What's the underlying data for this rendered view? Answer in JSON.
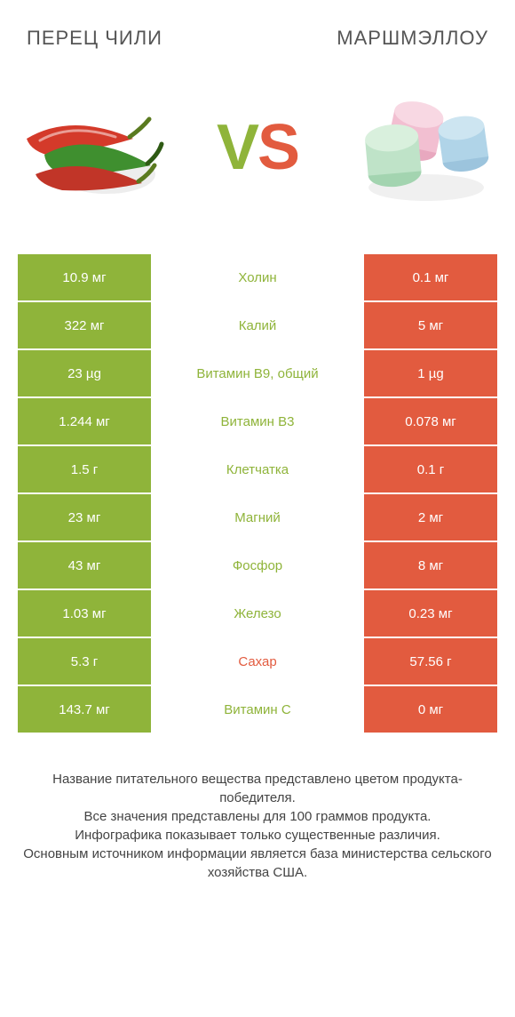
{
  "colors": {
    "left": "#8fb43a",
    "right": "#e25b3f",
    "mid_bg": "#ffffff",
    "text_dark": "#333333"
  },
  "header": {
    "left_title": "ПЕРЕЦ ЧИЛИ",
    "right_title": "МАРШМЭЛЛОУ",
    "vs_v": "V",
    "vs_s": "S"
  },
  "rows": [
    {
      "left": "10.9 мг",
      "label": "Холин",
      "right": "0.1 мг",
      "winner": "left"
    },
    {
      "left": "322 мг",
      "label": "Калий",
      "right": "5 мг",
      "winner": "left"
    },
    {
      "left": "23 µg",
      "label": "Витамин B9, общий",
      "right": "1 µg",
      "winner": "left"
    },
    {
      "left": "1.244 мг",
      "label": "Витамин B3",
      "right": "0.078 мг",
      "winner": "left"
    },
    {
      "left": "1.5 г",
      "label": "Клетчатка",
      "right": "0.1 г",
      "winner": "left"
    },
    {
      "left": "23 мг",
      "label": "Магний",
      "right": "2 мг",
      "winner": "left"
    },
    {
      "left": "43 мг",
      "label": "Фосфор",
      "right": "8 мг",
      "winner": "left"
    },
    {
      "left": "1.03 мг",
      "label": "Железо",
      "right": "0.23 мг",
      "winner": "left"
    },
    {
      "left": "5.3 г",
      "label": "Сахар",
      "right": "57.56 г",
      "winner": "right"
    },
    {
      "left": "143.7 мг",
      "label": "Витамин C",
      "right": "0 мг",
      "winner": "left"
    }
  ],
  "footer": {
    "line1": "Название питательного вещества представлено цветом продукта-победителя.",
    "line2": "Все значения представлены для 100 граммов продукта.",
    "line3": "Инфографика показывает только существенные различия.",
    "line4": "Основным источником информации является база министерства сельского хозяйства США."
  }
}
